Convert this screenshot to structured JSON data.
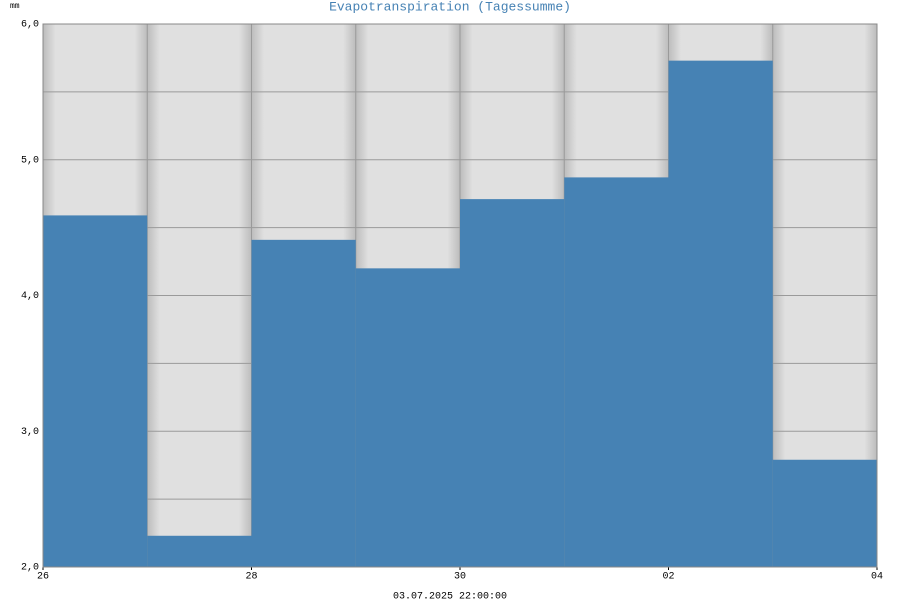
{
  "chart_data": {
    "type": "histogram",
    "title": "Evapotranspiration (Tagessumme)",
    "y_unit": "mm",
    "x_label": "03.07.2025 22:00:00",
    "bins": [
      0,
      1,
      2,
      3,
      4,
      5,
      6,
      7,
      8
    ],
    "values": [
      4.59,
      2.23,
      4.41,
      4.2,
      4.71,
      4.87,
      5.73,
      2.79
    ],
    "color": "#4682b4",
    "xlim": [
      0,
      8
    ],
    "xticks": [
      {
        "value": 0,
        "label": "26"
      },
      {
        "value": 2,
        "label": "28"
      },
      {
        "value": 4,
        "label": "30"
      },
      {
        "value": 6,
        "label": "02"
      },
      {
        "value": 8,
        "label": "04"
      }
    ],
    "ylim": [
      2,
      6
    ],
    "yticks": [
      {
        "value": 2,
        "label": "2,0"
      },
      {
        "value": 3,
        "label": "3,0"
      },
      {
        "value": 4,
        "label": "4,0"
      },
      {
        "value": 5,
        "label": "5,0"
      },
      {
        "value": 6,
        "label": "6,0"
      }
    ],
    "minor_yticks": [
      2.5,
      3.5,
      4.5,
      5.5
    ],
    "grid": true
  }
}
